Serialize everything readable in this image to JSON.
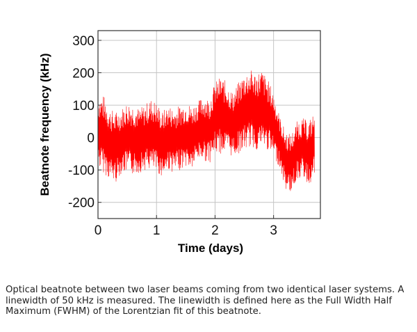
{
  "chart_data": {
    "type": "line",
    "title": "",
    "xlabel": "Time (days)",
    "ylabel": "Beatnote frequency (kHz)",
    "xlim": [
      0,
      3.8
    ],
    "ylim": [
      -250,
      330
    ],
    "x_ticks": [
      0,
      1,
      2,
      3
    ],
    "y_ticks": [
      300,
      200,
      100,
      0,
      -100,
      -200
    ],
    "grid": true,
    "series": [
      {
        "name": "Beatnote frequency",
        "color": "#ff0000",
        "x": [
          0.0,
          0.1,
          0.2,
          0.3,
          0.4,
          0.5,
          0.6,
          0.7,
          0.8,
          0.9,
          1.0,
          1.1,
          1.2,
          1.3,
          1.4,
          1.5,
          1.6,
          1.7,
          1.8,
          1.9,
          2.0,
          2.1,
          2.2,
          2.3,
          2.4,
          2.5,
          2.6,
          2.7,
          2.8,
          2.9,
          3.0,
          3.1,
          3.2,
          3.3,
          3.4,
          3.5,
          3.6,
          3.7
        ],
        "mean": [
          20,
          10,
          -20,
          -30,
          -10,
          0,
          -5,
          -10,
          0,
          10,
          0,
          -20,
          0,
          -10,
          0,
          10,
          0,
          20,
          30,
          20,
          60,
          70,
          60,
          40,
          60,
          80,
          90,
          80,
          90,
          70,
          40,
          -10,
          -70,
          -80,
          -40,
          -30,
          -50,
          -20
        ],
        "amplitude": [
          110,
          120,
          110,
          110,
          100,
          110,
          110,
          100,
          100,
          110,
          110,
          100,
          100,
          100,
          100,
          100,
          100,
          90,
          100,
          100,
          110,
          120,
          110,
          100,
          110,
          120,
          120,
          120,
          120,
          110,
          100,
          80,
          90,
          90,
          90,
          90,
          100,
          100
        ]
      }
    ]
  },
  "caption": "Optical beatnote between two laser beams coming from two identical laser systems. A linewidth of 50 kHz is measured. The linewidth is defined here as the Full Width Half Maximum (FWHM) of the Lorentzian fit of this beatnote."
}
